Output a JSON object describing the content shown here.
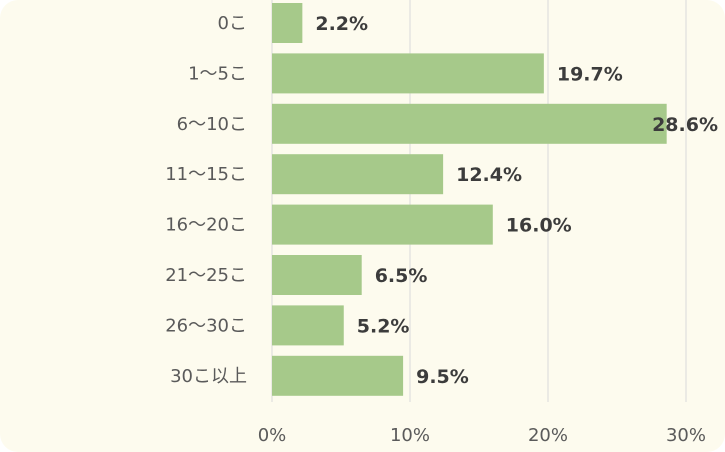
{
  "chart_data": {
    "type": "bar",
    "orientation": "horizontal",
    "categories": [
      "0こ",
      "1～5こ",
      "6～10こ",
      "11～15こ",
      "16～20こ",
      "21～25こ",
      "26～30こ",
      "30こ以上"
    ],
    "values": [
      2.2,
      19.7,
      28.6,
      12.4,
      16.0,
      6.5,
      5.2,
      9.5
    ],
    "value_labels": [
      "2.2%",
      "19.7%",
      "28.6%",
      "12.4%",
      "16.0%",
      "6.5%",
      "5.2%",
      "9.5%"
    ],
    "x_ticks": [
      0,
      10,
      20,
      30
    ],
    "x_tick_labels": [
      "0%",
      "10%",
      "20%",
      "30%"
    ],
    "xlim": [
      0,
      30
    ],
    "grid": true,
    "legend": false,
    "colors": {
      "bar": "#a6c98a",
      "background": "#fdfbee",
      "grid": "#d9d9d9"
    }
  }
}
